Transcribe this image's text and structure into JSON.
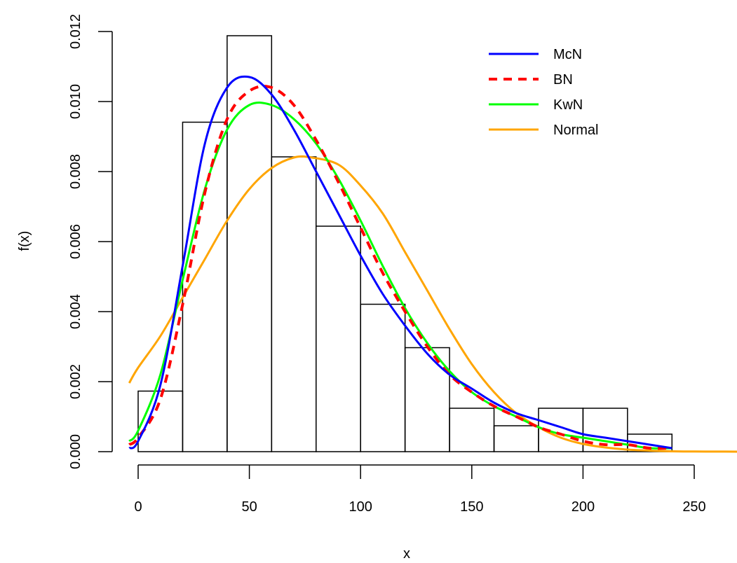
{
  "chart_data": {
    "type": "histogram",
    "title": "",
    "xlabel": "x",
    "ylabel": "f(x)",
    "xlim": [
      -5,
      270
    ],
    "ylim": [
      0,
      0.012
    ],
    "x_ticks": [
      0,
      50,
      100,
      150,
      200,
      250
    ],
    "x_tick_labels": [
      "0",
      "50",
      "100",
      "150",
      "200",
      "250"
    ],
    "y_ticks": [
      0,
      0.002,
      0.004,
      0.006,
      0.008,
      0.01,
      0.012
    ],
    "y_tick_labels": [
      "0.000",
      "0.002",
      "0.004",
      "0.006",
      "0.008",
      "0.010",
      "0.012"
    ],
    "grid": false,
    "histogram": {
      "bins": [
        [
          0,
          20
        ],
        [
          20,
          40
        ],
        [
          40,
          60
        ],
        [
          60,
          80
        ],
        [
          80,
          100
        ],
        [
          100,
          120
        ],
        [
          120,
          140
        ],
        [
          140,
          160
        ],
        [
          160,
          180
        ],
        [
          180,
          200
        ],
        [
          200,
          220
        ],
        [
          220,
          240
        ]
      ],
      "density": [
        0.00173,
        0.00941,
        0.01188,
        0.00842,
        0.00644,
        0.00421,
        0.00297,
        0.00124,
        0.00074,
        0.00124,
        0.00124,
        0.0005
      ]
    },
    "legend": {
      "position": "top-right",
      "entries": [
        {
          "label": "McN",
          "color": "#0000ff",
          "dashed": false
        },
        {
          "label": "BN",
          "color": "#ff0000",
          "dashed": true
        },
        {
          "label": "KwN",
          "color": "#00ff00",
          "dashed": false
        },
        {
          "label": "Normal",
          "color": "#ffa500",
          "dashed": false
        }
      ]
    },
    "series": [
      {
        "name": "McN",
        "color": "#0000ff",
        "dashed": false,
        "x": [
          -4,
          0,
          10,
          20,
          30,
          40,
          50,
          60,
          70,
          80,
          90,
          100,
          110,
          120,
          130,
          140,
          150,
          160,
          170,
          180,
          190,
          200,
          210,
          220,
          230,
          240
        ],
        "y": [
          0.0001,
          0.0003,
          0.0019,
          0.0053,
          0.0088,
          0.0104,
          0.0107,
          0.0102,
          0.0092,
          0.008,
          0.0068,
          0.0056,
          0.0045,
          0.0036,
          0.0028,
          0.0022,
          0.0018,
          0.0014,
          0.0011,
          0.0009,
          0.0007,
          0.0005,
          0.0004,
          0.0003,
          0.0002,
          0.0001
        ]
      },
      {
        "name": "BN",
        "color": "#ff0000",
        "dashed": true,
        "x": [
          -4,
          0,
          10,
          20,
          30,
          40,
          50,
          60,
          70,
          80,
          90,
          100,
          110,
          120,
          130,
          140,
          150,
          160,
          170,
          180,
          190,
          200,
          210,
          220,
          230,
          240
        ],
        "y": [
          0.0002,
          0.0004,
          0.0015,
          0.0042,
          0.0074,
          0.0095,
          0.0103,
          0.0104,
          0.0099,
          0.0089,
          0.0077,
          0.0064,
          0.0051,
          0.004,
          0.003,
          0.0022,
          0.0017,
          0.0013,
          0.001,
          0.0007,
          0.0005,
          0.0003,
          0.0002,
          0.0002,
          0.0001,
          0.0001
        ]
      },
      {
        "name": "KwN",
        "color": "#00ff00",
        "dashed": false,
        "x": [
          -4,
          0,
          10,
          20,
          30,
          40,
          50,
          60,
          70,
          80,
          90,
          100,
          110,
          120,
          130,
          140,
          150,
          160,
          170,
          180,
          190,
          200,
          210,
          220,
          230,
          240
        ],
        "y": [
          0.0003,
          0.0006,
          0.0022,
          0.0049,
          0.0075,
          0.0092,
          0.0099,
          0.0099,
          0.0095,
          0.0088,
          0.0078,
          0.0066,
          0.0053,
          0.0041,
          0.0031,
          0.0023,
          0.0017,
          0.0013,
          0.001,
          0.0007,
          0.0005,
          0.0004,
          0.0003,
          0.0002,
          0.0001,
          0.0001
        ]
      },
      {
        "name": "Normal",
        "color": "#ffa500",
        "dashed": false,
        "x": [
          -4,
          0,
          10,
          20,
          30,
          40,
          50,
          60,
          70,
          78,
          90,
          100,
          110,
          120,
          130,
          140,
          150,
          160,
          170,
          180,
          190,
          200,
          210,
          220,
          230,
          240,
          250,
          260,
          270
        ],
        "y": [
          0.00196,
          0.0024,
          0.0033,
          0.0044,
          0.0055,
          0.0066,
          0.0075,
          0.0081,
          0.0084,
          0.0084,
          0.0082,
          0.0076,
          0.0068,
          0.0057,
          0.0046,
          0.0035,
          0.0025,
          0.0017,
          0.0011,
          0.0007,
          0.0004,
          0.00022,
          0.00012,
          6e-05,
          3e-05,
          1e-05,
          5e-06,
          2e-06,
          1e-06
        ]
      }
    ]
  }
}
